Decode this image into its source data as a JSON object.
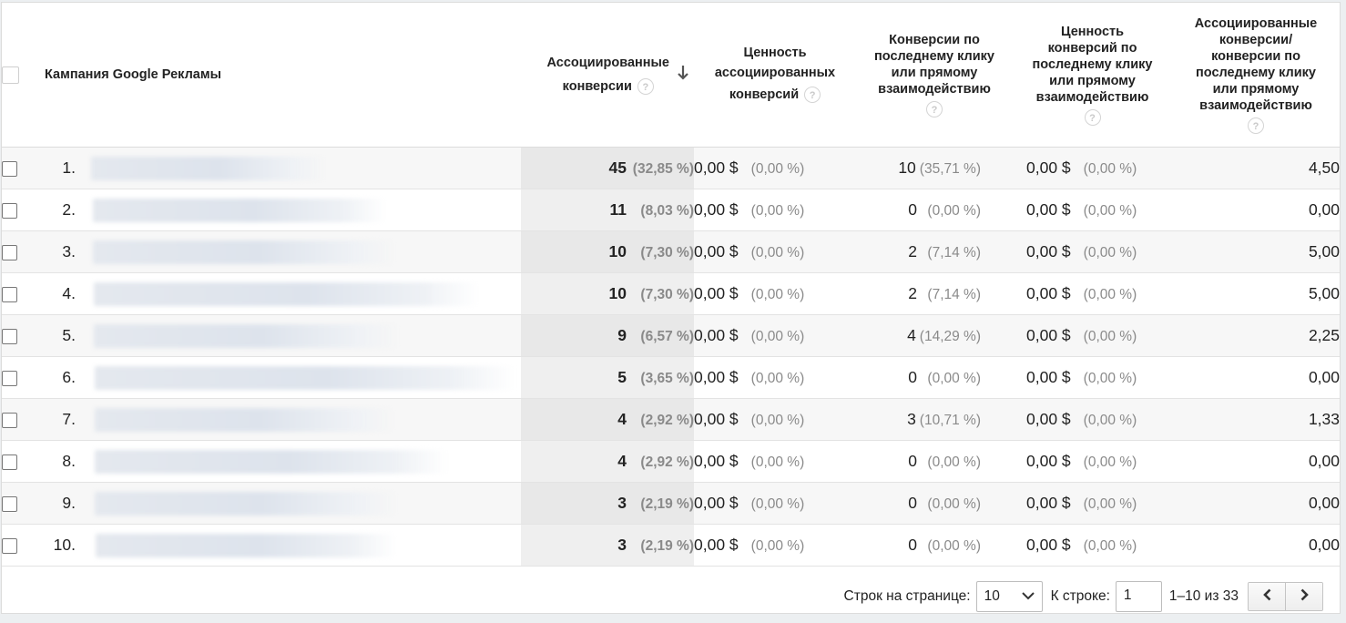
{
  "header": {
    "campaign": "Кампания Google Рекламы",
    "assisted_conv": [
      "Ассоциированные",
      "конверсии"
    ],
    "assisted_value": [
      "Ценность",
      "ассоциированных",
      "конверсий"
    ],
    "last_click_conv": [
      "Конверсии по",
      "последнему клику",
      "или прямому",
      "взаимодействию"
    ],
    "last_click_value": [
      "Ценность",
      "конверсий по",
      "последнему клику",
      "или прямому",
      "взаимодействию"
    ],
    "ratio": [
      "Ассоциированные",
      "конверсии/",
      "конверсии по",
      "последнему клику",
      "или прямому",
      "взаимодействию"
    ],
    "help_glyph": "?"
  },
  "rows": [
    {
      "idx": "1.",
      "ac": "45",
      "ac_pct": "(32,85 %)",
      "av": "0,00 $",
      "av_pct": "(0,00 %)",
      "lc": "10",
      "lc_pct": "(35,71 %)",
      "lv": "0,00 $",
      "lv_pct": "(0,00 %)",
      "ratio": "4,50"
    },
    {
      "idx": "2.",
      "ac": "11",
      "ac_pct": "(8,03 %)",
      "av": "0,00 $",
      "av_pct": "(0,00 %)",
      "lc": "0",
      "lc_pct": "(0,00 %)",
      "lv": "0,00 $",
      "lv_pct": "(0,00 %)",
      "ratio": "0,00"
    },
    {
      "idx": "3.",
      "ac": "10",
      "ac_pct": "(7,30 %)",
      "av": "0,00 $",
      "av_pct": "(0,00 %)",
      "lc": "2",
      "lc_pct": "(7,14 %)",
      "lv": "0,00 $",
      "lv_pct": "(0,00 %)",
      "ratio": "5,00"
    },
    {
      "idx": "4.",
      "ac": "10",
      "ac_pct": "(7,30 %)",
      "av": "0,00 $",
      "av_pct": "(0,00 %)",
      "lc": "2",
      "lc_pct": "(7,14 %)",
      "lv": "0,00 $",
      "lv_pct": "(0,00 %)",
      "ratio": "5,00"
    },
    {
      "idx": "5.",
      "ac": "9",
      "ac_pct": "(6,57 %)",
      "av": "0,00 $",
      "av_pct": "(0,00 %)",
      "lc": "4",
      "lc_pct": "(14,29 %)",
      "lv": "0,00 $",
      "lv_pct": "(0,00 %)",
      "ratio": "2,25"
    },
    {
      "idx": "6.",
      "ac": "5",
      "ac_pct": "(3,65 %)",
      "av": "0,00 $",
      "av_pct": "(0,00 %)",
      "lc": "0",
      "lc_pct": "(0,00 %)",
      "lv": "0,00 $",
      "lv_pct": "(0,00 %)",
      "ratio": "0,00"
    },
    {
      "idx": "7.",
      "ac": "4",
      "ac_pct": "(2,92 %)",
      "av": "0,00 $",
      "av_pct": "(0,00 %)",
      "lc": "3",
      "lc_pct": "(10,71 %)",
      "lv": "0,00 $",
      "lv_pct": "(0,00 %)",
      "ratio": "1,33"
    },
    {
      "idx": "8.",
      "ac": "4",
      "ac_pct": "(2,92 %)",
      "av": "0,00 $",
      "av_pct": "(0,00 %)",
      "lc": "0",
      "lc_pct": "(0,00 %)",
      "lv": "0,00 $",
      "lv_pct": "(0,00 %)",
      "ratio": "0,00"
    },
    {
      "idx": "9.",
      "ac": "3",
      "ac_pct": "(2,19 %)",
      "av": "0,00 $",
      "av_pct": "(0,00 %)",
      "lc": "0",
      "lc_pct": "(0,00 %)",
      "lv": "0,00 $",
      "lv_pct": "(0,00 %)",
      "ratio": "0,00"
    },
    {
      "idx": "10.",
      "ac": "3",
      "ac_pct": "(2,19 %)",
      "av": "0,00 $",
      "av_pct": "(0,00 %)",
      "lc": "0",
      "lc_pct": "(0,00 %)",
      "lv": "0,00 $",
      "lv_pct": "(0,00 %)",
      "ratio": "0,00"
    }
  ],
  "pagination": {
    "rows_label": "Строк на странице:",
    "rows_value": "10",
    "goto_label": "К строке:",
    "goto_value": "1",
    "range": "1–10 из 33"
  },
  "icons": {
    "sort": "arrow-down-icon",
    "help": "help-icon",
    "prev": "chevron-left-icon",
    "next": "chevron-right-icon",
    "dropdown": "chevron-down-icon"
  }
}
